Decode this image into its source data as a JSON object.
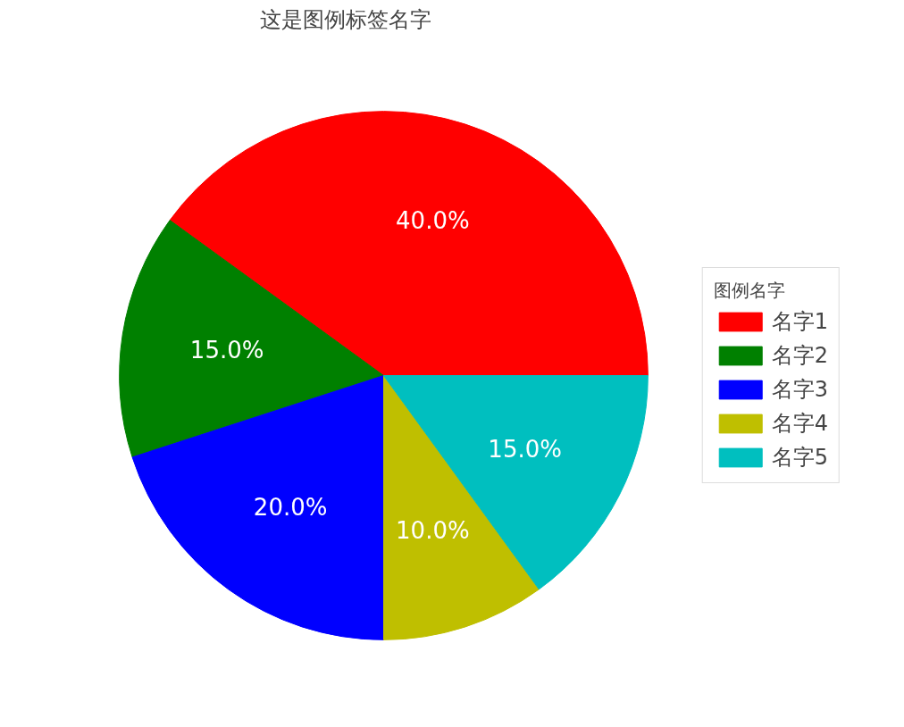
{
  "chart_data": {
    "type": "pie",
    "title": "这是图例标签名字",
    "legend_title": "图例名字",
    "categories": [
      "名字1",
      "名字2",
      "名字3",
      "名字4",
      "名字5"
    ],
    "values": [
      40,
      15,
      20,
      10,
      15
    ],
    "colors": [
      "#ff0000",
      "#008000",
      "#0000ff",
      "#bfbf00",
      "#00bfbf"
    ],
    "value_labels": [
      "40.0%",
      "15.0%",
      "20.0%",
      "10.0%",
      "15.0%"
    ],
    "legend": "right"
  }
}
